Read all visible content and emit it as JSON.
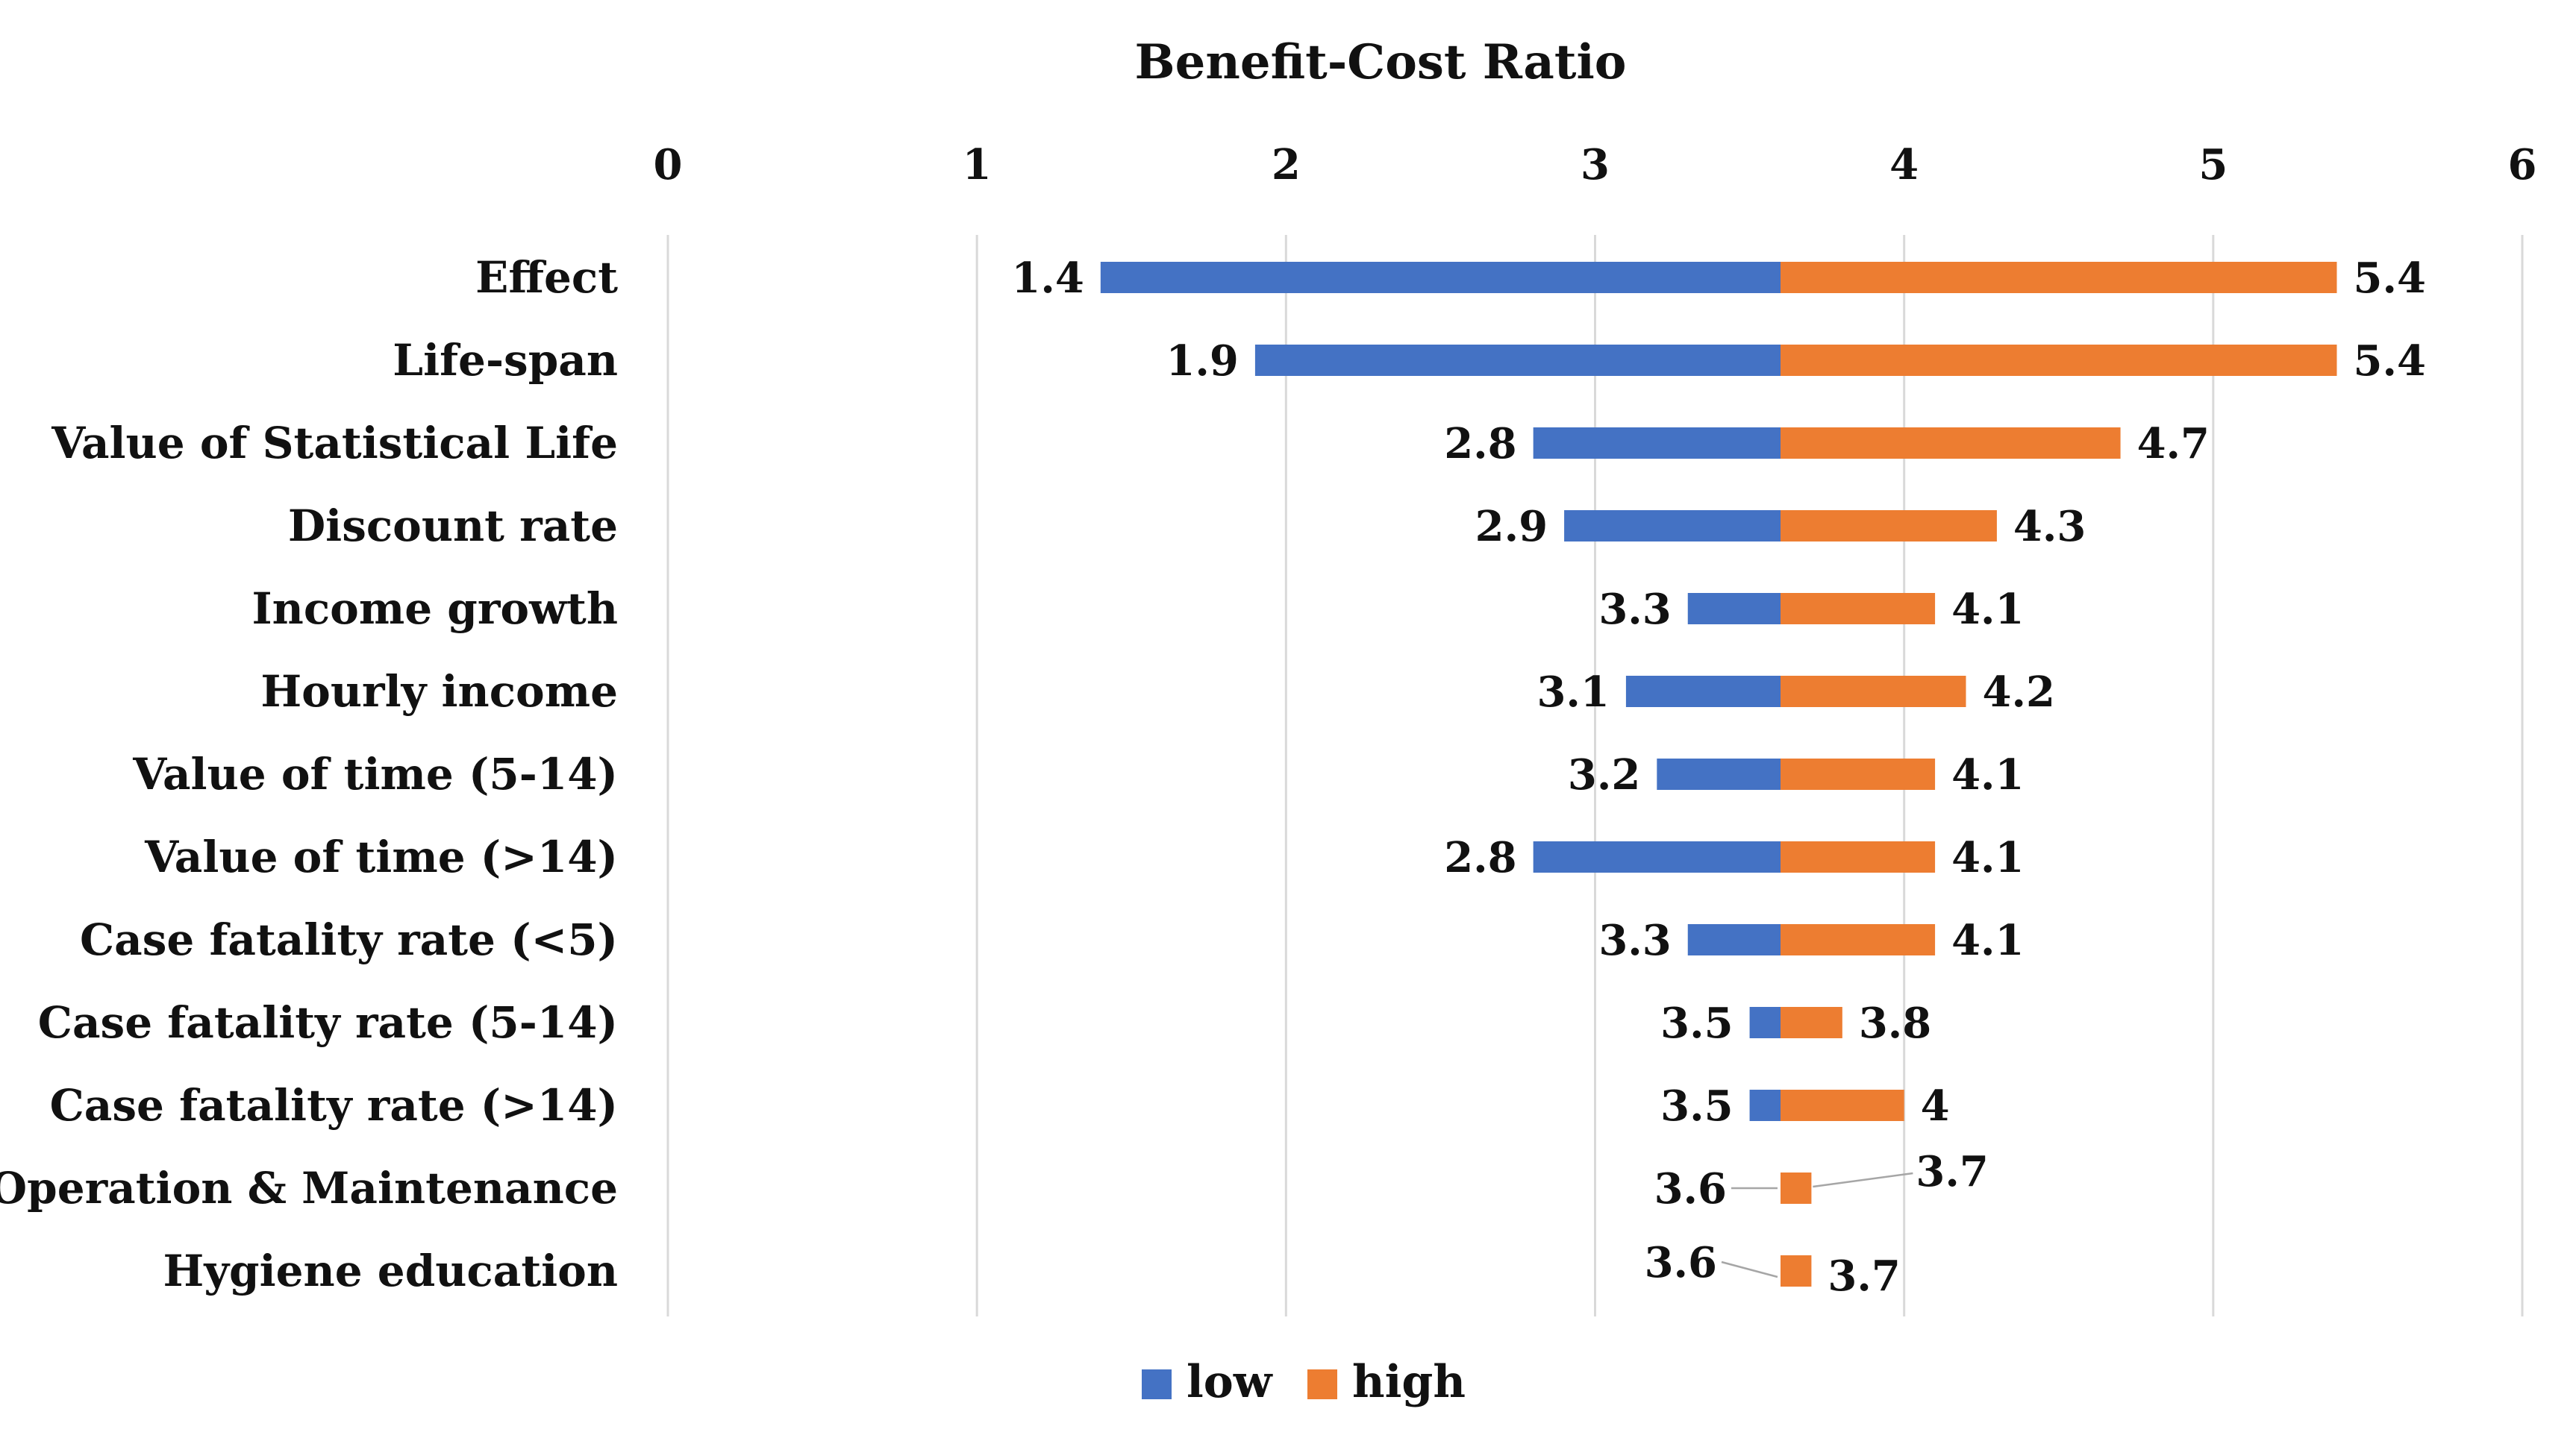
{
  "chart_data": {
    "type": "bar",
    "orientation": "horizontal-tornado",
    "title": "Benefit-Cost Ratio",
    "base_value": 3.6,
    "xlim": [
      0,
      6
    ],
    "x_ticks": [
      "0",
      "1",
      "2",
      "3",
      "4",
      "5",
      "6"
    ],
    "grid": true,
    "legend_position": "bottom",
    "categories": [
      "Effect",
      "Life-span",
      "Value of Statistical Life",
      "Discount rate",
      "Income growth",
      "Hourly income",
      "Value of time (5-14)",
      "Value of time (>14)",
      "Case fatality rate (<5)",
      "Case fatality rate (5-14)",
      "Case fatality rate (>14)",
      "Operation & Maintenance",
      "Hygiene education"
    ],
    "series": [
      {
        "name": "low",
        "color": "#4472C4",
        "values": [
          1.4,
          1.9,
          2.8,
          2.9,
          3.3,
          3.1,
          3.2,
          2.8,
          3.3,
          3.5,
          3.5,
          3.6,
          3.6
        ],
        "labels": [
          "1.4",
          "1.9",
          "2.8",
          "2.9",
          "3.3",
          "3.1",
          "3.2",
          "2.8",
          "3.3",
          "3.5",
          "3.5",
          "3.6",
          "3.6"
        ]
      },
      {
        "name": "high",
        "color": "#ED7D31",
        "values": [
          5.4,
          5.4,
          4.7,
          4.3,
          4.1,
          4.2,
          4.1,
          4.1,
          4.1,
          3.8,
          4.0,
          3.7,
          3.7
        ],
        "labels": [
          "5.4",
          "5.4",
          "4.7",
          "4.3",
          "4.1",
          "4.2",
          "4.1",
          "4.1",
          "4.1",
          "3.8",
          "4",
          "3.7",
          "3.7"
        ]
      }
    ]
  }
}
